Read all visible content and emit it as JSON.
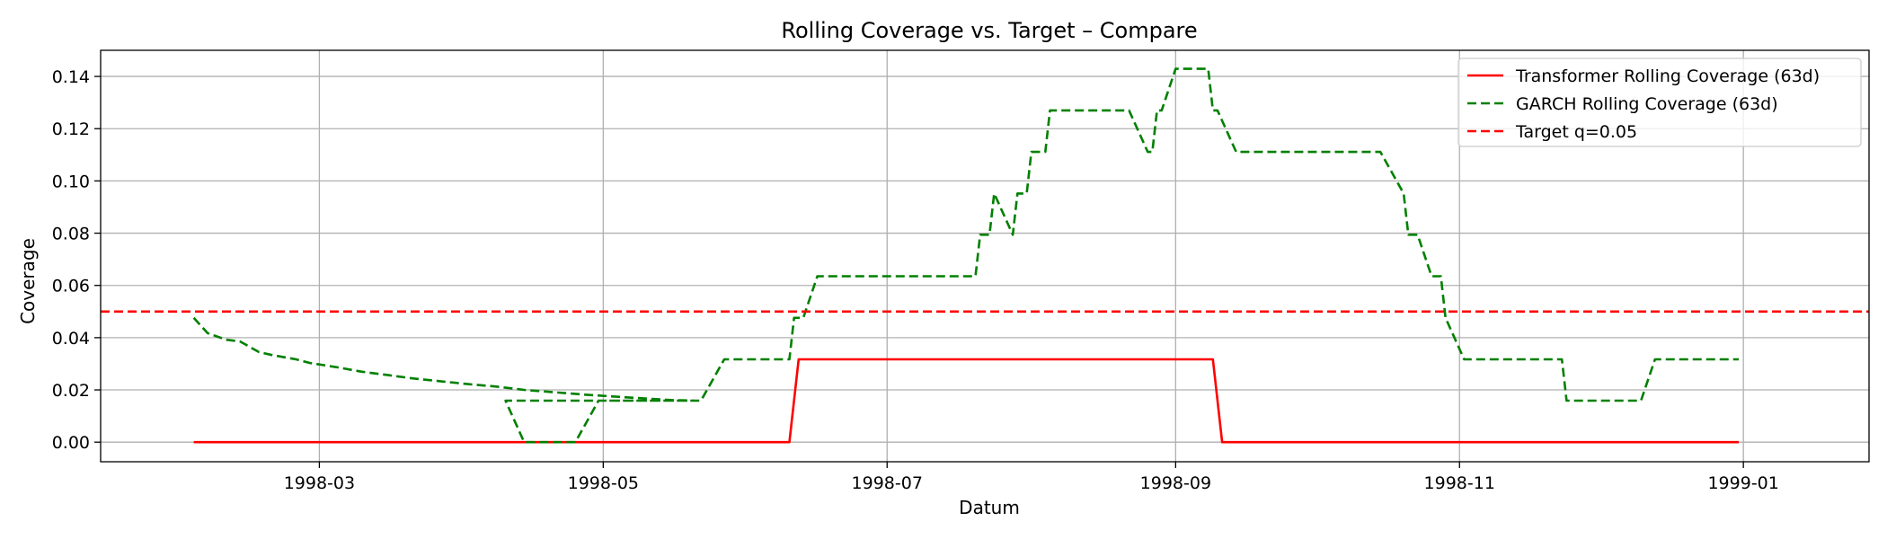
{
  "chart_data": {
    "type": "line",
    "title": "Rolling Coverage vs. Target – Compare",
    "xlabel": "Datum",
    "ylabel": "Coverage",
    "x_type": "date",
    "xlim": [
      "1998-01-13",
      "1999-01-28"
    ],
    "ylim": [
      -0.0075,
      0.15
    ],
    "x_ticks": [
      "1998-03-01",
      "1998-05-01",
      "1998-07-01",
      "1998-09-01",
      "1998-11-01",
      "1999-01-01"
    ],
    "x_tick_labels": [
      "1998-03",
      "1998-05",
      "1998-07",
      "1998-09",
      "1998-11",
      "1999-01"
    ],
    "y_ticks": [
      0.0,
      0.02,
      0.04,
      0.06,
      0.08,
      0.1,
      0.12,
      0.14
    ],
    "y_tick_labels": [
      "0.00",
      "0.02",
      "0.04",
      "0.06",
      "0.08",
      "0.10",
      "0.12",
      "0.14"
    ],
    "grid": true,
    "legend_position": "upper right",
    "series": [
      {
        "name": "Transformer Rolling Coverage (63d)",
        "color": "#ff0000",
        "style": "solid",
        "points": [
          [
            "1998-02-02",
            0.0
          ],
          [
            "1998-06-10",
            0.0
          ],
          [
            "1998-06-12",
            0.0317
          ],
          [
            "1998-09-09",
            0.0317
          ],
          [
            "1998-09-11",
            0.0
          ],
          [
            "1998-12-31",
            0.0
          ]
        ]
      },
      {
        "name": "GARCH Rolling Coverage (63d)",
        "color": "#008000",
        "style": "dashed",
        "points": [
          [
            "1998-02-02",
            0.0476
          ],
          [
            "1998-02-05",
            0.0417
          ],
          [
            "1998-02-09",
            0.0392
          ],
          [
            "1998-02-12",
            0.0385
          ],
          [
            "1998-02-16",
            0.0345
          ],
          [
            "1998-02-19",
            0.0333
          ],
          [
            "1998-02-24",
            0.0317
          ],
          [
            "1998-02-27",
            0.0303
          ],
          [
            "1998-03-05",
            0.0286
          ],
          [
            "1998-03-10",
            0.027
          ],
          [
            "1998-03-16",
            0.0256
          ],
          [
            "1998-03-21",
            0.0244
          ],
          [
            "1998-03-27",
            0.0233
          ],
          [
            "1998-04-02",
            0.0222
          ],
          [
            "1998-04-08",
            0.0213
          ],
          [
            "1998-04-14",
            0.02
          ],
          [
            "1998-04-20",
            0.0192
          ],
          [
            "1998-04-27",
            0.0182
          ],
          [
            "1998-05-03",
            0.0175
          ],
          [
            "1998-05-10",
            0.0167
          ],
          [
            "1998-05-16",
            0.0161
          ],
          [
            "1998-05-21",
            0.0159
          ],
          [
            "1998-04-10",
            0.0159
          ],
          [
            "1998-04-14",
            0.0
          ],
          [
            "1998-04-25",
            0.0
          ],
          [
            "1998-04-30",
            0.0159
          ],
          [
            "1998-05-22",
            0.0159
          ],
          [
            "1998-05-27",
            0.0317
          ],
          [
            "1998-06-10",
            0.0317
          ],
          [
            "1998-06-11",
            0.0476
          ],
          [
            "1998-06-13",
            0.0476
          ],
          [
            "1998-06-16",
            0.0635
          ],
          [
            "1998-07-20",
            0.0635
          ],
          [
            "1998-07-21",
            0.0794
          ],
          [
            "1998-07-23",
            0.0794
          ],
          [
            "1998-07-24",
            0.0952
          ],
          [
            "1998-07-28",
            0.0794
          ],
          [
            "1998-07-29",
            0.0952
          ],
          [
            "1998-07-31",
            0.0952
          ],
          [
            "1998-08-01",
            0.1111
          ],
          [
            "1998-08-04",
            0.1111
          ],
          [
            "1998-08-05",
            0.127
          ],
          [
            "1998-08-22",
            0.127
          ],
          [
            "1998-08-26",
            0.1111
          ],
          [
            "1998-08-27",
            0.1111
          ],
          [
            "1998-08-28",
            0.127
          ],
          [
            "1998-08-29",
            0.127
          ],
          [
            "1998-09-01",
            0.1429
          ],
          [
            "1998-09-08",
            0.1429
          ],
          [
            "1998-09-09",
            0.127
          ],
          [
            "1998-09-10",
            0.127
          ],
          [
            "1998-09-14",
            0.1111
          ],
          [
            "1998-10-15",
            0.1111
          ],
          [
            "1998-10-20",
            0.0952
          ],
          [
            "1998-10-21",
            0.0794
          ],
          [
            "1998-10-23",
            0.0794
          ],
          [
            "1998-10-26",
            0.0635
          ],
          [
            "1998-10-28",
            0.0635
          ],
          [
            "1998-10-29",
            0.0476
          ],
          [
            "1998-11-02",
            0.0317
          ],
          [
            "1998-11-23",
            0.0317
          ],
          [
            "1998-11-24",
            0.0159
          ],
          [
            "1998-12-10",
            0.0159
          ],
          [
            "1998-12-13",
            0.0317
          ],
          [
            "1998-12-31",
            0.0317
          ]
        ]
      },
      {
        "name": "Target q=0.05",
        "color": "#ff0000",
        "style": "dashed",
        "hline": 0.05
      }
    ]
  }
}
